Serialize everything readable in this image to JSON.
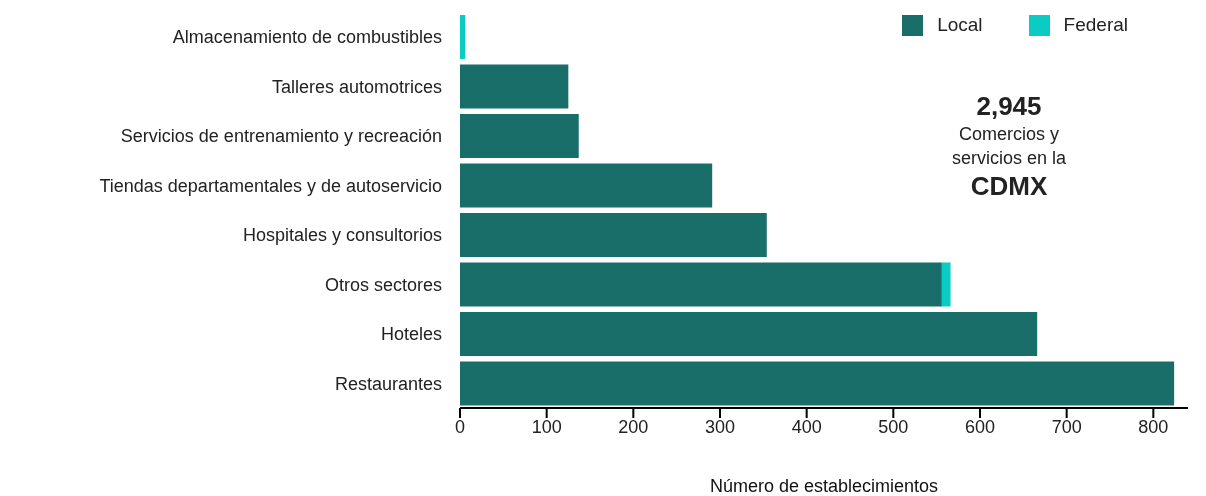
{
  "chart_data": {
    "type": "bar",
    "orientation": "horizontal",
    "stacked": true,
    "xlabel": "Número de establecimientos",
    "categories": [
      "Almacenamiento de combustibles",
      "Talleres automotrices",
      "Servicios de entrenamiento y recreación",
      "Tiendas departamentales y de autoservicio",
      "Hospitales y consultorios",
      "Otros sectores",
      "Hoteles",
      "Restaurantes"
    ],
    "series": [
      {
        "name": "Local",
        "color": "#1a6e6a",
        "values": [
          null,
          125,
          137,
          291,
          354,
          556,
          666,
          824
        ]
      },
      {
        "name": "Federal",
        "color": "#0accc4",
        "values": [
          6,
          null,
          null,
          null,
          null,
          10,
          null,
          null
        ]
      }
    ],
    "xlim": [
      0,
      840
    ],
    "xticks": [
      0,
      100,
      200,
      300,
      400,
      500,
      600,
      700,
      800
    ],
    "legend": "top right",
    "annotations": [
      "2,945",
      "Comercios y servicios en la",
      "CDMX"
    ]
  }
}
